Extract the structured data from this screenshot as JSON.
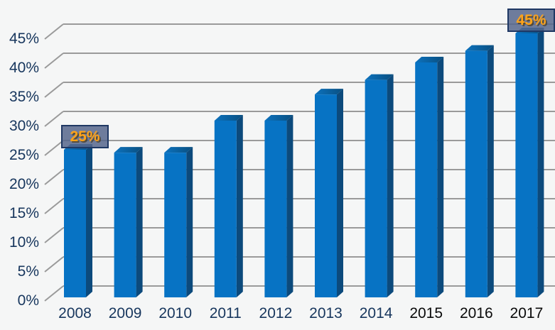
{
  "chart_data": {
    "type": "bar",
    "title": "",
    "xlabel": "",
    "ylabel": "",
    "categories": [
      "2008",
      "2009",
      "2010",
      "2011",
      "2012",
      "2013",
      "2014",
      "2015",
      "2016",
      "2017"
    ],
    "values": [
      25,
      24.5,
      24.5,
      30,
      30,
      34.5,
      37,
      40,
      42,
      45
    ],
    "unit": "%",
    "ylim": [
      0,
      45
    ],
    "ytick_step": 5,
    "ytick_labels": [
      "0%",
      "5%",
      "10%",
      "15%",
      "20%",
      "25%",
      "30%",
      "35%",
      "40%",
      "45%"
    ],
    "grid": true,
    "legend": false,
    "style_3d": true,
    "colors": {
      "bar_front": "#0773c4",
      "bar_side": "#0c4a7c",
      "bar_top_light": "#0c72be",
      "bar_top_dark": "#094f80",
      "gridline": "#9a9a9a",
      "tick_label": "#17365d",
      "background": "#f5f6f6",
      "callout_fill": "#6f7d9c",
      "callout_border": "#1f3864",
      "callout_text": "#ffa319"
    },
    "xtick_colors": [
      "#17365d",
      "#17365d",
      "#17365d",
      "#17365d",
      "#17365d",
      "#17365d",
      "#17365d",
      "#0a0a0a",
      "#0a0a0a",
      "#0a0a0a"
    ],
    "callouts": [
      {
        "category": "2008",
        "label": "25%"
      },
      {
        "category": "2017",
        "label": "45%"
      }
    ]
  }
}
